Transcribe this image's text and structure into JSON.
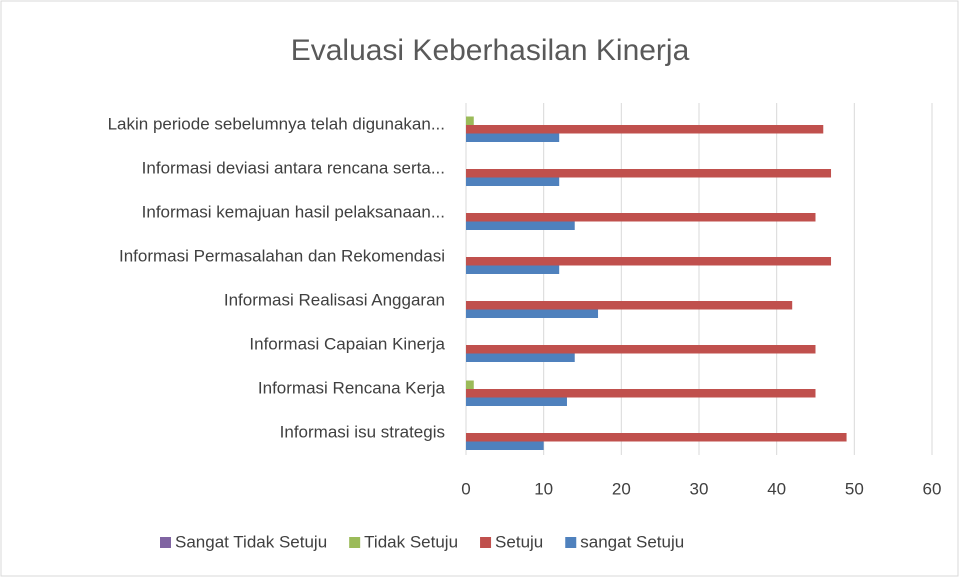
{
  "chart_data": {
    "type": "hbar",
    "title": "Evaluasi Keberhasilan Kinerja",
    "categories": [
      "Informasi isu strategis",
      "Informasi Rencana Kerja",
      "Informasi Capaian Kinerja",
      "Informasi Realisasi Anggaran",
      "Informasi Permasalahan dan Rekomendasi",
      "Informasi kemajuan hasil pelaksanaan...",
      "Informasi deviasi antara rencana serta...",
      "Lakin periode sebelumnya telah digunakan..."
    ],
    "series": [
      {
        "name": "sangat Setuju",
        "color": "#4f81bd",
        "values": [
          10,
          13,
          14,
          17,
          12,
          14,
          12,
          12
        ]
      },
      {
        "name": "Setuju",
        "color": "#c0504d",
        "values": [
          49,
          45,
          45,
          42,
          47,
          45,
          47,
          46
        ]
      },
      {
        "name": "Tidak Setuju",
        "color": "#9bbb59",
        "values": [
          0,
          1,
          0,
          0,
          0,
          0,
          0,
          1
        ]
      },
      {
        "name": "Sangat Tidak Setuju",
        "color": "#8064a2",
        "values": [
          0,
          0,
          0,
          0,
          0,
          0,
          0,
          0
        ]
      }
    ],
    "xlim": [
      0,
      60
    ],
    "xticks": [
      0,
      10,
      20,
      30,
      40,
      50,
      60
    ],
    "grid": true,
    "legend": "bottom"
  }
}
